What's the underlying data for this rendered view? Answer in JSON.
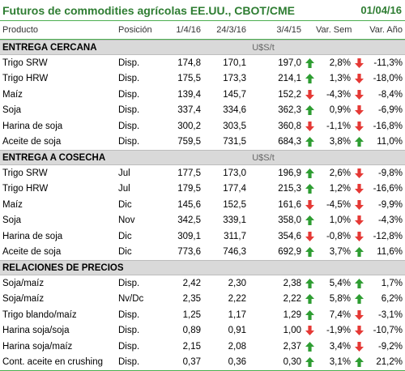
{
  "title": "Futuros de commodities agrícolas EE.UU., CBOT/CME",
  "date": "01/04/16",
  "columns": [
    "Producto",
    "Posición",
    "1/4/16",
    "24/3/16",
    "3/4/15",
    "Var. Sem.",
    "Var. Año"
  ],
  "colors": {
    "accent": "#2e7d32",
    "up": "#2e9d32",
    "down": "#e53935",
    "section_bg": "#d9d9d9"
  },
  "sections": [
    {
      "label": "ENTREGA CERCANA",
      "unit": "U$S/t",
      "rows": [
        {
          "product": "Trigo SRW",
          "position": "Disp.",
          "v1": "174,8",
          "v2": "170,1",
          "v3": "197,0",
          "arrow1": "up",
          "sem": "2,8%",
          "arrow2": "down",
          "year": "-11,3%"
        },
        {
          "product": "Trigo HRW",
          "position": "Disp.",
          "v1": "175,5",
          "v2": "173,3",
          "v3": "214,1",
          "arrow1": "up",
          "sem": "1,3%",
          "arrow2": "down",
          "year": "-18,0%"
        },
        {
          "product": "Maíz",
          "position": "Disp.",
          "v1": "139,4",
          "v2": "145,7",
          "v3": "152,2",
          "arrow1": "down",
          "sem": "-4,3%",
          "arrow2": "down",
          "year": "-8,4%"
        },
        {
          "product": "Soja",
          "position": "Disp.",
          "v1": "337,4",
          "v2": "334,6",
          "v3": "362,3",
          "arrow1": "up",
          "sem": "0,9%",
          "arrow2": "down",
          "year": "-6,9%"
        },
        {
          "product": "Harina de soja",
          "position": "Disp.",
          "v1": "300,2",
          "v2": "303,5",
          "v3": "360,8",
          "arrow1": "down",
          "sem": "-1,1%",
          "arrow2": "down",
          "year": "-16,8%"
        },
        {
          "product": "Aceite de soja",
          "position": "Disp.",
          "v1": "759,5",
          "v2": "731,5",
          "v3": "684,3",
          "arrow1": "up",
          "sem": "3,8%",
          "arrow2": "up",
          "year": "11,0%"
        }
      ]
    },
    {
      "label": "ENTREGA A COSECHA",
      "unit": "U$S/t",
      "rows": [
        {
          "product": "Trigo SRW",
          "position": "Jul",
          "v1": "177,5",
          "v2": "173,0",
          "v3": "196,9",
          "arrow1": "up",
          "sem": "2,6%",
          "arrow2": "down",
          "year": "-9,8%"
        },
        {
          "product": "Trigo HRW",
          "position": "Jul",
          "v1": "179,5",
          "v2": "177,4",
          "v3": "215,3",
          "arrow1": "up",
          "sem": "1,2%",
          "arrow2": "down",
          "year": "-16,6%"
        },
        {
          "product": "Maíz",
          "position": "Dic",
          "v1": "145,6",
          "v2": "152,5",
          "v3": "161,6",
          "arrow1": "down",
          "sem": "-4,5%",
          "arrow2": "down",
          "year": "-9,9%"
        },
        {
          "product": "Soja",
          "position": "Nov",
          "v1": "342,5",
          "v2": "339,1",
          "v3": "358,0",
          "arrow1": "up",
          "sem": "1,0%",
          "arrow2": "down",
          "year": "-4,3%"
        },
        {
          "product": "Harina de soja",
          "position": "Dic",
          "v1": "309,1",
          "v2": "311,7",
          "v3": "354,6",
          "arrow1": "down",
          "sem": "-0,8%",
          "arrow2": "down",
          "year": "-12,8%"
        },
        {
          "product": "Aceite de soja",
          "position": "Dic",
          "v1": "773,6",
          "v2": "746,3",
          "v3": "692,9",
          "arrow1": "up",
          "sem": "3,7%",
          "arrow2": "up",
          "year": "11,6%"
        }
      ]
    },
    {
      "label": "RELACIONES DE PRECIOS",
      "unit": "",
      "rows": [
        {
          "product": "Soja/maíz",
          "position": "Disp.",
          "v1": "2,42",
          "v2": "2,30",
          "v3": "2,38",
          "arrow1": "up",
          "sem": "5,4%",
          "arrow2": "up",
          "year": "1,7%"
        },
        {
          "product": "Soja/maíz",
          "position": "Nv/Dc",
          "v1": "2,35",
          "v2": "2,22",
          "v3": "2,22",
          "arrow1": "up",
          "sem": "5,8%",
          "arrow2": "up",
          "year": "6,2%"
        },
        {
          "product": "Trigo blando/maíz",
          "position": "Disp.",
          "v1": "1,25",
          "v2": "1,17",
          "v3": "1,29",
          "arrow1": "up",
          "sem": "7,4%",
          "arrow2": "down",
          "year": "-3,1%"
        },
        {
          "product": "Harina soja/soja",
          "position": "Disp.",
          "v1": "0,89",
          "v2": "0,91",
          "v3": "1,00",
          "arrow1": "down",
          "sem": "-1,9%",
          "arrow2": "down",
          "year": "-10,7%"
        },
        {
          "product": "Harina soja/maíz",
          "position": "Disp.",
          "v1": "2,15",
          "v2": "2,08",
          "v3": "2,37",
          "arrow1": "up",
          "sem": "3,4%",
          "arrow2": "down",
          "year": "-9,2%"
        },
        {
          "product": "Cont. aceite en crushing",
          "position": "Disp.",
          "v1": "0,37",
          "v2": "0,36",
          "v3": "0,30",
          "arrow1": "up",
          "sem": "3,1%",
          "arrow2": "up",
          "year": "21,2%"
        }
      ]
    }
  ]
}
